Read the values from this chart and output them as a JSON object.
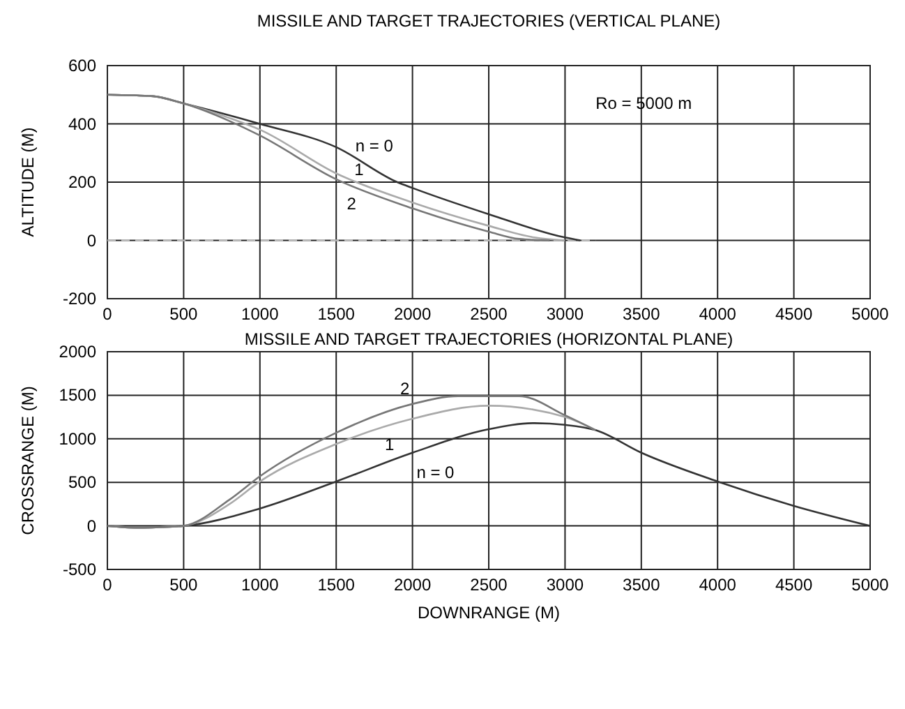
{
  "chart_data": [
    {
      "type": "line",
      "title": "MISSILE AND TARGET TRAJECTORIES (VERTICAL PLANE)",
      "ylabel": "ALTITUDE  (M)",
      "xlim": [
        0,
        5000
      ],
      "ylim": [
        -200,
        600
      ],
      "xticks": [
        0,
        500,
        1000,
        1500,
        2000,
        2500,
        3000,
        3500,
        4000,
        4500,
        5000
      ],
      "yticks": [
        -200,
        0,
        200,
        400,
        600
      ],
      "grid": true,
      "series": [
        {
          "color": "#bbbbbb",
          "line_style": "dashed",
          "x": [
            0,
            3200
          ],
          "values": [
            0,
            0
          ]
        },
        {
          "name": "n = 0",
          "color": "#333333",
          "x": [
            0,
            300,
            500,
            1000,
            1500,
            1900,
            2000,
            2500,
            3000,
            3100
          ],
          "values": [
            500,
            495,
            470,
            400,
            320,
            200,
            180,
            90,
            10,
            0
          ]
        },
        {
          "name": "1",
          "color": "#aaaaaa",
          "x": [
            0,
            300,
            500,
            800,
            1000,
            1500,
            2000,
            2500,
            2800,
            3000
          ],
          "values": [
            500,
            495,
            470,
            420,
            380,
            230,
            130,
            50,
            10,
            0
          ]
        },
        {
          "name": "2",
          "color": "#777777",
          "x": [
            0,
            300,
            500,
            800,
            1000,
            1500,
            2000,
            2500,
            2700,
            2900
          ],
          "values": [
            500,
            495,
            470,
            410,
            360,
            210,
            110,
            30,
            5,
            0
          ]
        }
      ],
      "annotations": [
        "Ro = 5000   m"
      ]
    },
    {
      "type": "line",
      "title": "MISSILE AND TARGET TRAJECTORIES (HORIZONTAL PLANE)",
      "xlabel": "DOWNRANGE  (M)",
      "ylabel": "CROSSRANGE  (M)",
      "xlim": [
        0,
        5000
      ],
      "ylim": [
        -500,
        2000
      ],
      "xticks": [
        0,
        500,
        1000,
        1500,
        2000,
        2500,
        3000,
        3500,
        4000,
        4500,
        5000
      ],
      "yticks": [
        -500,
        0,
        500,
        1000,
        1500,
        2000
      ],
      "grid": true,
      "series": [
        {
          "name": "n = 0",
          "color": "#333333",
          "x": [
            0,
            200,
            400,
            500,
            1000,
            1500,
            2000,
            2500,
            2800,
            3000,
            3200,
            3500,
            4000,
            4500,
            5000
          ],
          "values": [
            0,
            -20,
            -10,
            0,
            200,
            510,
            840,
            1110,
            1180,
            1160,
            1100,
            840,
            510,
            230,
            0
          ]
        },
        {
          "name": "1",
          "color": "#aaaaaa",
          "x": [
            0,
            200,
            400,
            500,
            800,
            1000,
            1500,
            2000,
            2500,
            3000,
            3200
          ],
          "values": [
            0,
            -20,
            -10,
            0,
            250,
            510,
            940,
            1230,
            1380,
            1250,
            1100
          ]
        },
        {
          "name": "2",
          "color": "#777777",
          "x": [
            0,
            200,
            400,
            500,
            800,
            1000,
            1500,
            2000,
            2300,
            2700,
            3000,
            3200
          ],
          "values": [
            0,
            -20,
            -10,
            0,
            300,
            570,
            1070,
            1400,
            1490,
            1490,
            1270,
            1100
          ]
        }
      ]
    }
  ]
}
